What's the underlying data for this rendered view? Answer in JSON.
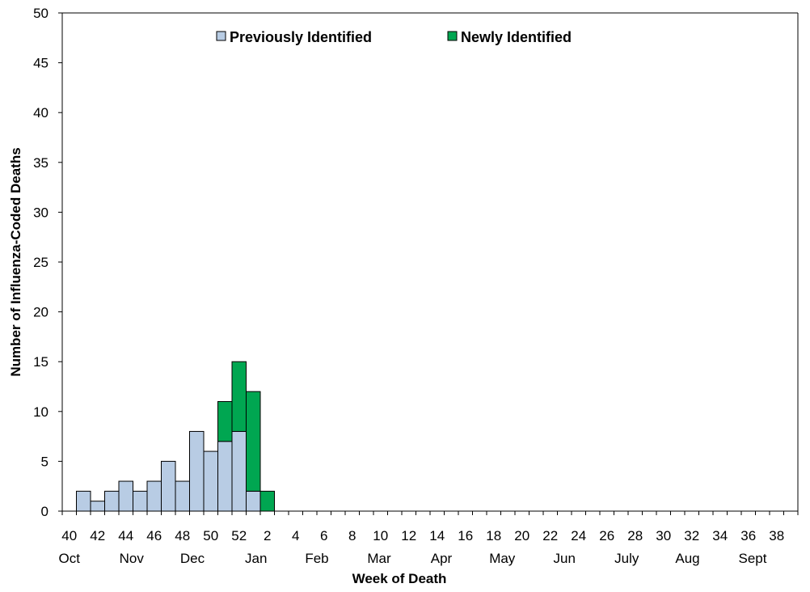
{
  "chart_data": {
    "type": "bar",
    "stacked": true,
    "ylabel": "Number of Influenza-Coded Deaths",
    "xlabel": "Week of Death",
    "ylim": [
      0,
      50
    ],
    "y_ticks": [
      0,
      5,
      10,
      15,
      20,
      25,
      30,
      35,
      40,
      45,
      50
    ],
    "x_tick_labels": [
      "40",
      "42",
      "44",
      "46",
      "48",
      "50",
      "52",
      "2",
      "4",
      "6",
      "8",
      "10",
      "12",
      "14",
      "16",
      "18",
      "20",
      "22",
      "24",
      "26",
      "28",
      "30",
      "32",
      "34",
      "36",
      "38"
    ],
    "month_labels": [
      "Oct",
      "Nov",
      "Dec",
      "Jan",
      "Feb",
      "Mar",
      "Apr",
      "May",
      "Jun",
      "July",
      "Aug",
      "Sept"
    ],
    "categories": [
      "40",
      "41",
      "42",
      "43",
      "44",
      "45",
      "46",
      "47",
      "48",
      "49",
      "50",
      "51",
      "52",
      "1",
      "2",
      "3",
      "4",
      "5",
      "6",
      "7",
      "8",
      "9",
      "10",
      "11",
      "12",
      "13",
      "14",
      "15",
      "16",
      "17",
      "18",
      "19",
      "20",
      "21",
      "22",
      "23",
      "24",
      "25",
      "26",
      "27",
      "28",
      "29",
      "30",
      "31",
      "32",
      "33",
      "34",
      "35",
      "36",
      "37",
      "38",
      "39"
    ],
    "series": [
      {
        "name": "Previously Identified",
        "color": "#b8cce4",
        "values": [
          0,
          2,
          1,
          2,
          3,
          2,
          3,
          5,
          3,
          8,
          6,
          7,
          8,
          2,
          0,
          0,
          0,
          0,
          0,
          0,
          0,
          0,
          0,
          0,
          0,
          0,
          0,
          0,
          0,
          0,
          0,
          0,
          0,
          0,
          0,
          0,
          0,
          0,
          0,
          0,
          0,
          0,
          0,
          0,
          0,
          0,
          0,
          0,
          0,
          0,
          0,
          0
        ]
      },
      {
        "name": "Newly Identified",
        "color": "#00a651",
        "values": [
          0,
          0,
          0,
          0,
          0,
          0,
          0,
          0,
          0,
          0,
          0,
          4,
          7,
          10,
          2,
          0,
          0,
          0,
          0,
          0,
          0,
          0,
          0,
          0,
          0,
          0,
          0,
          0,
          0,
          0,
          0,
          0,
          0,
          0,
          0,
          0,
          0,
          0,
          0,
          0,
          0,
          0,
          0,
          0,
          0,
          0,
          0,
          0,
          0,
          0,
          0,
          0
        ]
      }
    ],
    "legend_position": "top-center",
    "grid": false
  }
}
